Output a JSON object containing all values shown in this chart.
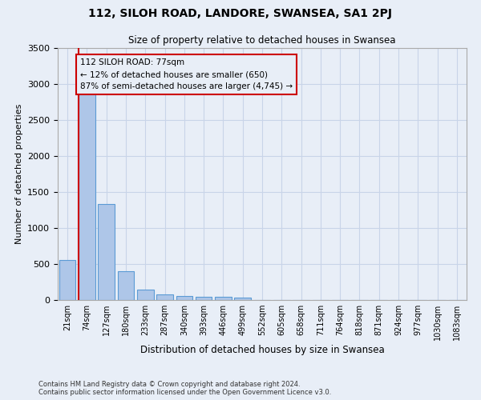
{
  "title": "112, SILOH ROAD, LANDORE, SWANSEA, SA1 2PJ",
  "subtitle": "Size of property relative to detached houses in Swansea",
  "xlabel": "Distribution of detached houses by size in Swansea",
  "ylabel": "Number of detached properties",
  "categories": [
    "21sqm",
    "74sqm",
    "127sqm",
    "180sqm",
    "233sqm",
    "287sqm",
    "340sqm",
    "393sqm",
    "446sqm",
    "499sqm",
    "552sqm",
    "605sqm",
    "658sqm",
    "711sqm",
    "764sqm",
    "818sqm",
    "871sqm",
    "924sqm",
    "977sqm",
    "1030sqm",
    "1083sqm"
  ],
  "bar_heights": [
    560,
    2900,
    1330,
    400,
    150,
    80,
    55,
    45,
    40,
    30,
    0,
    0,
    0,
    0,
    0,
    0,
    0,
    0,
    0,
    0,
    0
  ],
  "bar_color": "#aec6e8",
  "bar_edge_color": "#5b9bd5",
  "grid_color": "#c8d4e8",
  "background_color": "#e8eef7",
  "ylim": [
    0,
    3500
  ],
  "yticks": [
    0,
    500,
    1000,
    1500,
    2000,
    2500,
    3000,
    3500
  ],
  "property_label": "112 SILOH ROAD: 77sqm",
  "annotation_line1": "← 12% of detached houses are smaller (650)",
  "annotation_line2": "87% of semi-detached houses are larger (4,745) →",
  "vline_color": "#cc0000",
  "annotation_box_color": "#cc0000",
  "footer_line1": "Contains HM Land Registry data © Crown copyright and database right 2024.",
  "footer_line2": "Contains public sector information licensed under the Open Government Licence v3.0."
}
